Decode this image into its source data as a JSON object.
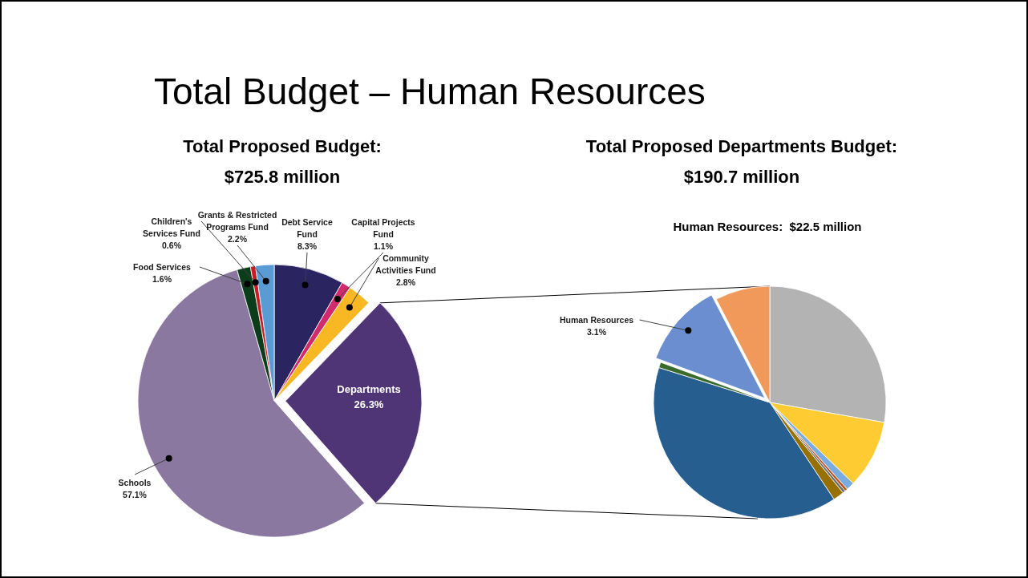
{
  "chart_data": [
    {
      "type": "pie",
      "title": "Total Proposed Budget:",
      "subtitle": "$725.8 million",
      "annotations": [
        "Total Budget – Human Resources"
      ],
      "categories": [
        "Debt Service Fund",
        "Capital Projects Fund",
        "Community Activities Fund",
        "Departments",
        "Schools",
        "Food Services",
        "Children's Services Fund",
        "Grants & Restricted Programs Fund"
      ],
      "values": [
        8.3,
        1.1,
        2.8,
        26.3,
        57.1,
        1.6,
        0.6,
        2.2
      ],
      "colors": [
        "#2a2560",
        "#d12b6e",
        "#f7b824",
        "#4f3575",
        "#8a78a0",
        "#0b3d1a",
        "#c51d23",
        "#5a9bd6"
      ],
      "value_labels": [
        "8.3%",
        "1.1%",
        "2.8%",
        "26.3%",
        "57.1%",
        "1.6%",
        "0.6%",
        "2.2%"
      ]
    },
    {
      "type": "pie",
      "title": "Total Proposed Departments Budget:",
      "subtitle": "$190.7 million",
      "annotations": [
        "Human Resources:  $22.5 million"
      ],
      "categories": [
        null,
        null,
        null,
        null,
        null,
        null,
        null,
        null,
        "Human Resources",
        null
      ],
      "values": [
        7.3,
        2.5,
        0.3,
        0.1,
        0.1,
        0.4,
        10.3,
        0.2,
        3.1,
        2.0
      ],
      "colors": [
        "#b3b3b3",
        "#fecb33",
        "#7aace0",
        "#c0501c",
        "#6b6b6b",
        "#967100",
        "#255e8f",
        "#3a6b2c",
        "#6a8ecf",
        "#f0995a"
      ],
      "value_labels": [
        null,
        null,
        null,
        null,
        null,
        null,
        null,
        null,
        "3.1%",
        null
      ]
    }
  ]
}
